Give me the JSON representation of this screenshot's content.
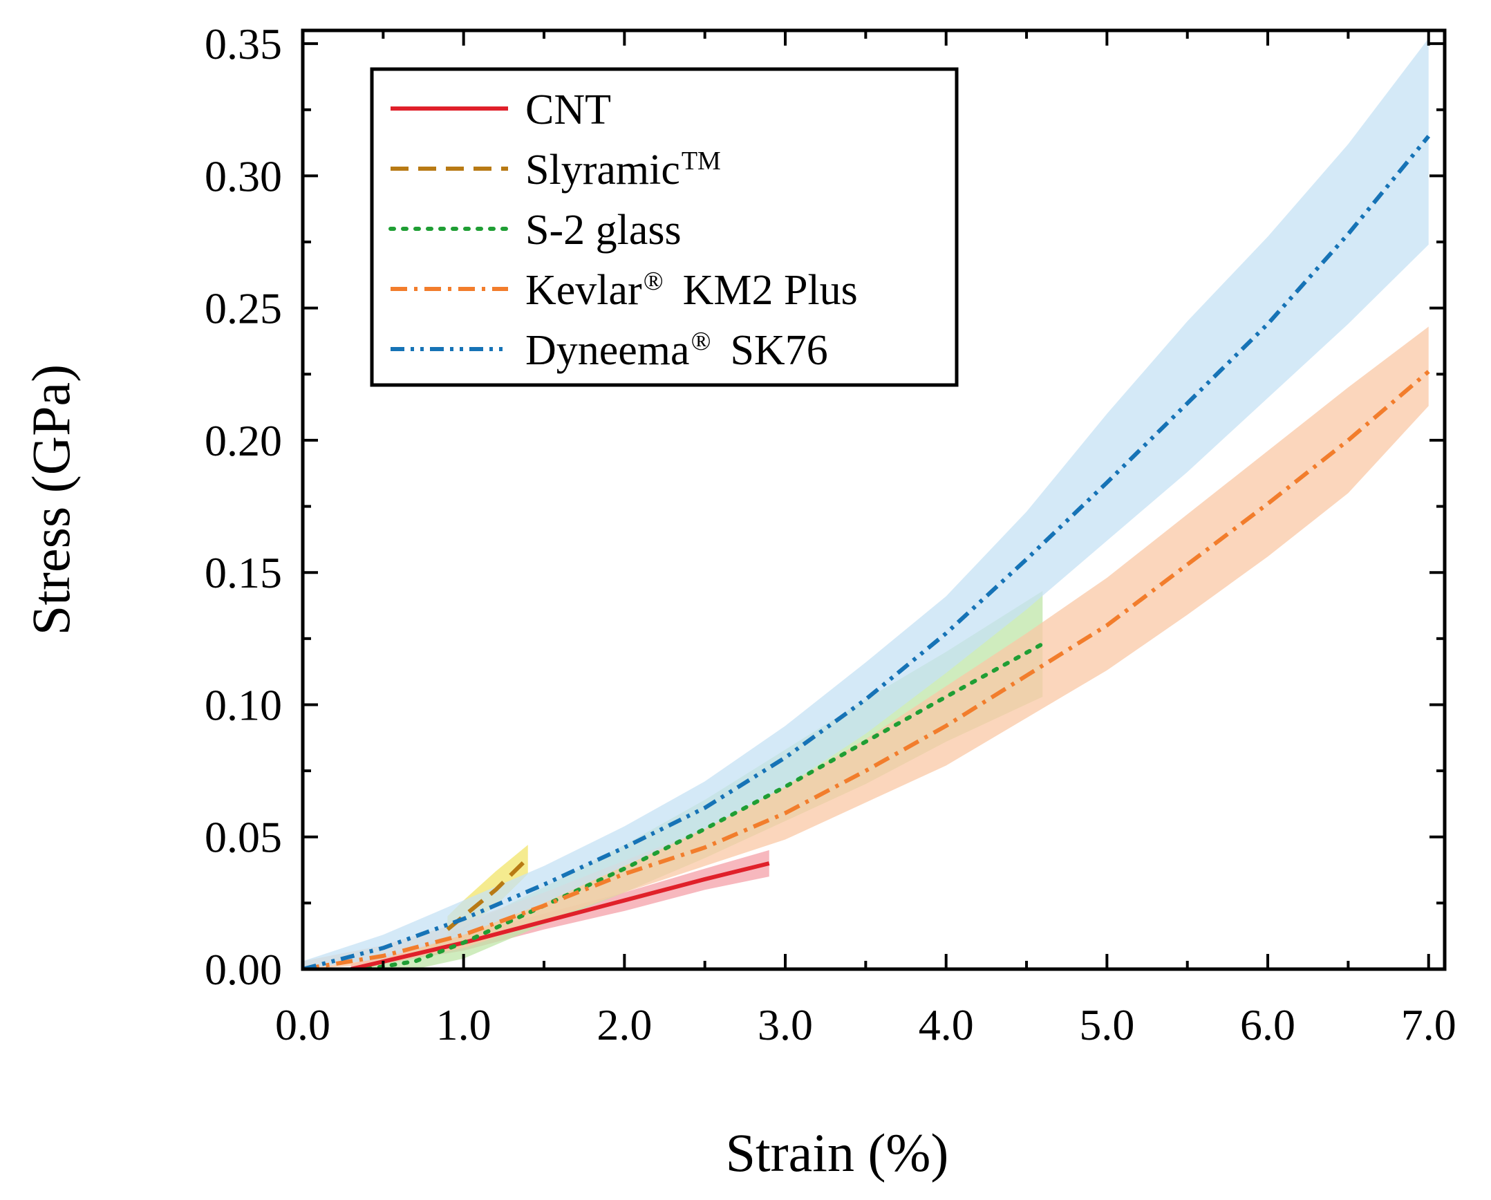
{
  "chart_data": {
    "type": "line",
    "title": "",
    "xlabel": "Strain (%)",
    "ylabel": "Stress (GPa)",
    "xlim": [
      0,
      7.1
    ],
    "ylim": [
      0,
      0.355
    ],
    "x_ticks": [
      0,
      1,
      2,
      3,
      4,
      5,
      6,
      7
    ],
    "x_tick_labels": [
      "0.0",
      "1.0",
      "2.0",
      "3.0",
      "4.0",
      "5.0",
      "6.0",
      "7.0"
    ],
    "y_ticks": [
      0,
      0.05,
      0.1,
      0.15,
      0.2,
      0.25,
      0.3,
      0.35
    ],
    "y_tick_labels": [
      "0.00",
      "0.05",
      "0.10",
      "0.15",
      "0.20",
      "0.25",
      "0.30",
      "0.35"
    ],
    "grid": false,
    "legend_position": "top-left",
    "series": [
      {
        "name": "CNT",
        "color": "#e0202a",
        "band_color": "#f4a0a8",
        "dash": "solid",
        "x": [
          0.3,
          1.0,
          1.5,
          2.0,
          2.5,
          2.9
        ],
        "y": [
          0.0,
          0.01,
          0.018,
          0.026,
          0.034,
          0.04
        ],
        "band_upper": [
          0.002,
          0.013,
          0.021,
          0.029,
          0.038,
          0.045
        ],
        "band_lower": [
          0.0,
          0.007,
          0.015,
          0.022,
          0.03,
          0.035
        ]
      },
      {
        "name": "Slyramic",
        "name_superscript": "TM",
        "color": "#b87a14",
        "band_color": "#f2e46a",
        "dash": "dashed",
        "x": [
          0.9,
          1.0,
          1.2,
          1.4
        ],
        "y": [
          0.015,
          0.02,
          0.03,
          0.042
        ],
        "band_upper": [
          0.02,
          0.026,
          0.037,
          0.047
        ],
        "band_lower": [
          0.011,
          0.015,
          0.024,
          0.036
        ]
      },
      {
        "name": "S-2 glass",
        "color": "#1f9e34",
        "band_color": "#bfe6a8",
        "dash": "dotted",
        "x": [
          0.4,
          0.7,
          1.0,
          1.5,
          2.0,
          2.5,
          3.0,
          3.5,
          4.0,
          4.6
        ],
        "y": [
          0.0,
          0.003,
          0.01,
          0.024,
          0.038,
          0.053,
          0.069,
          0.086,
          0.103,
          0.123
        ],
        "band_upper": [
          0.002,
          0.007,
          0.016,
          0.031,
          0.047,
          0.064,
          0.083,
          0.102,
          0.12,
          0.143
        ],
        "band_lower": [
          0.0,
          0.0,
          0.004,
          0.017,
          0.029,
          0.042,
          0.056,
          0.07,
          0.086,
          0.103
        ]
      },
      {
        "name": "Kevlar",
        "name_superscript": "®",
        "name_suffix": "KM2 Plus",
        "color": "#f27d2c",
        "band_color": "#f9c8a6",
        "dash": "dashdot",
        "x": [
          0.0,
          0.5,
          1.0,
          1.5,
          2.0,
          2.5,
          3.0,
          3.5,
          4.0,
          4.5,
          5.0,
          5.5,
          6.0,
          6.5,
          7.0
        ],
        "y": [
          0.0,
          0.005,
          0.013,
          0.024,
          0.036,
          0.046,
          0.059,
          0.075,
          0.092,
          0.111,
          0.13,
          0.153,
          0.176,
          0.2,
          0.226
        ],
        "band_upper": [
          0.003,
          0.009,
          0.018,
          0.029,
          0.041,
          0.053,
          0.069,
          0.087,
          0.107,
          0.127,
          0.148,
          0.172,
          0.196,
          0.22,
          0.243
        ],
        "band_lower": [
          0.0,
          0.002,
          0.008,
          0.018,
          0.029,
          0.039,
          0.049,
          0.063,
          0.077,
          0.095,
          0.113,
          0.134,
          0.156,
          0.18,
          0.213
        ]
      },
      {
        "name": "Dyneema",
        "name_superscript": "®",
        "name_suffix": "SK76",
        "color": "#1673b6",
        "band_color": "#c5e2f4",
        "dash": "dashdotdot",
        "x": [
          0.0,
          0.5,
          1.0,
          1.5,
          2.0,
          2.5,
          3.0,
          3.5,
          4.0,
          4.5,
          5.0,
          5.5,
          6.0,
          6.5,
          7.0
        ],
        "y": [
          0.0,
          0.008,
          0.019,
          0.032,
          0.046,
          0.061,
          0.08,
          0.102,
          0.127,
          0.155,
          0.184,
          0.214,
          0.244,
          0.278,
          0.315
        ],
        "band_upper": [
          0.003,
          0.013,
          0.026,
          0.039,
          0.054,
          0.071,
          0.092,
          0.116,
          0.141,
          0.173,
          0.21,
          0.245,
          0.277,
          0.312,
          0.352
        ],
        "band_lower": [
          0.0,
          0.004,
          0.013,
          0.025,
          0.039,
          0.053,
          0.069,
          0.089,
          0.112,
          0.136,
          0.162,
          0.188,
          0.216,
          0.244,
          0.274
        ]
      }
    ]
  }
}
